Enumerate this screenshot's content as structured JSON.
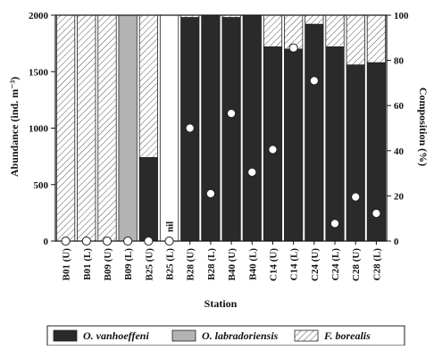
{
  "chart_data": {
    "type": "bar",
    "stacked": true,
    "xlabel": "Station",
    "ylabel": "Abundance (ind. m⁻³)",
    "y2label": "Composition (%)",
    "ylim": [
      0,
      2000
    ],
    "y2lim": [
      0,
      100
    ],
    "yticks": [
      "0",
      "500",
      "1000",
      "1500",
      "2000"
    ],
    "y2ticks": [
      "0",
      "20",
      "40",
      "60",
      "80",
      "100"
    ],
    "categories": [
      "B01 (U)",
      "B01 (L)",
      "B09 (U)",
      "B09 (L)",
      "B25 (U)",
      "B25 (L)",
      "B28 (U)",
      "B28 (L)",
      "B40 (U)",
      "B40 (L)",
      "C14 (U)",
      "C14 (L)",
      "C24 (U)",
      "C24 (L)",
      "C28 (U)",
      "C28 (L)"
    ],
    "series": [
      {
        "name": "O. vanhoeffeni",
        "fill": "#2a2a2a",
        "pattern": "solid",
        "values": [
          0,
          0,
          0,
          0,
          37,
          0,
          99,
          100,
          99,
          100,
          86,
          85,
          96,
          86,
          78,
          79
        ]
      },
      {
        "name": "O. labradoriensis",
        "fill": "#b3b3b3",
        "pattern": "solid",
        "values": [
          0,
          0,
          0,
          100,
          0,
          0,
          0,
          0,
          0,
          0,
          0,
          0,
          0,
          0,
          0,
          0
        ]
      },
      {
        "name": "F. borealis",
        "fill": "#ffffff",
        "pattern": "hatch",
        "values": [
          100,
          100,
          100,
          0,
          63,
          0,
          1,
          0,
          1,
          0,
          14,
          15,
          4,
          14,
          22,
          21
        ]
      }
    ],
    "abundance_markers": [
      0,
      0,
      0,
      0,
      0,
      0,
      1000,
      420,
      1130,
      610,
      810,
      1710,
      1420,
      155,
      390,
      245
    ],
    "annotations": [
      {
        "category": "B25 (L)",
        "text": "nil"
      }
    ],
    "legend_position": "bottom",
    "grid": false
  }
}
